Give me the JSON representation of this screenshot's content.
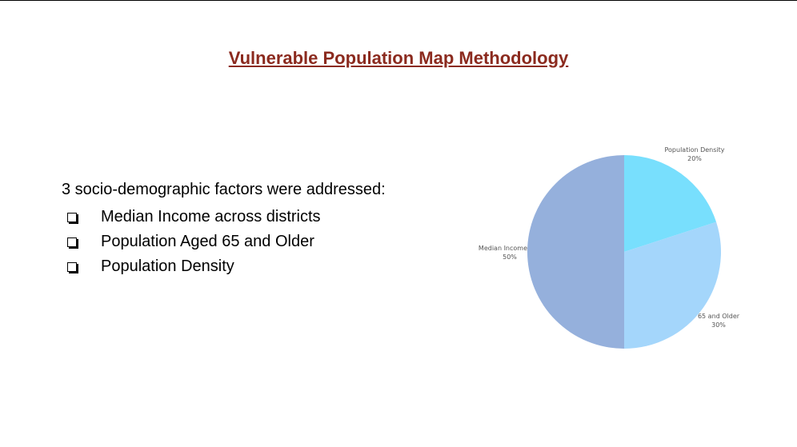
{
  "slide": {
    "title": "Vulnerable Population Map Methodology",
    "intro": "3 socio-demographic factors were addressed:",
    "factors": [
      "Median Income across districts",
      "Population Aged 65 and Older",
      "Population Density"
    ]
  },
  "chart_data": {
    "type": "pie",
    "categories": [
      "Population Density",
      "65 and Older",
      "Median Income"
    ],
    "values": [
      20,
      30,
      50
    ],
    "value_labels": [
      "20%",
      "30%",
      "50%"
    ],
    "colors": [
      "#78dffd",
      "#a4d6fb",
      "#95b0dc"
    ],
    "title": ""
  }
}
